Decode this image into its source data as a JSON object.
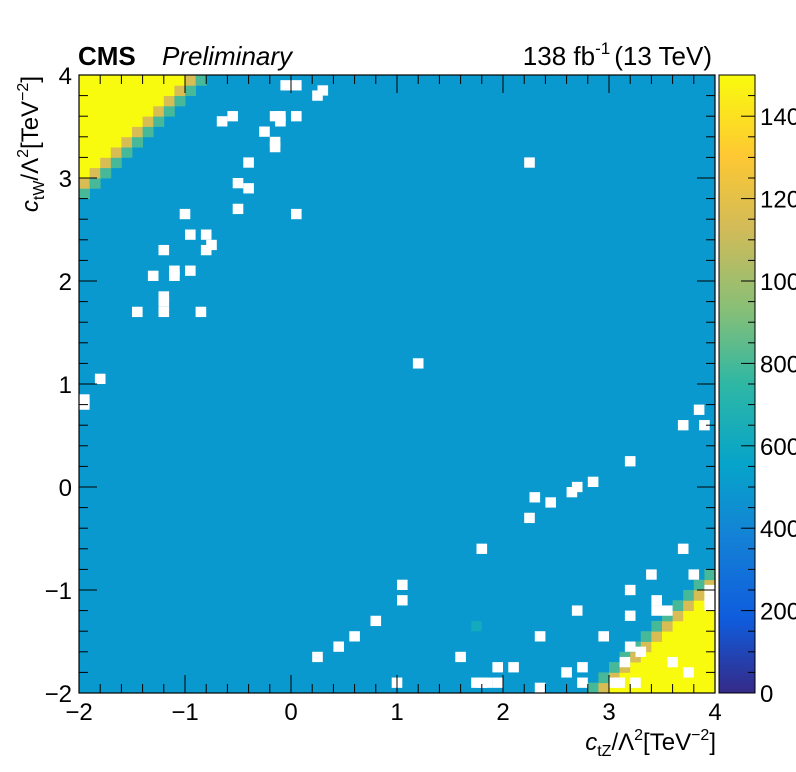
{
  "header": {
    "experiment": "CMS",
    "status": "Preliminary",
    "lumi_value": "138 fb",
    "lumi_exp": "-1",
    "energy": "(13 TeV)"
  },
  "chart_data": {
    "type": "heatmap",
    "xlabel": "c_tZ/Λ^2[TeV^-2]",
    "ylabel": "c_tW/Λ^2[TeV^-2]",
    "x_label_parts": {
      "var": "c",
      "sub": "tZ",
      "mid": "/Λ",
      "sup": "2",
      "unit": "[TeV",
      "unit_sup": "−2",
      "close": "]"
    },
    "y_label_parts": {
      "var": "c",
      "sub": "tW",
      "mid": "/Λ",
      "sup": "2",
      "unit": "[TeV",
      "unit_sup": "−2",
      "close": "]"
    },
    "xlim": [
      -2,
      4
    ],
    "ylim": [
      -2,
      4
    ],
    "x_ticks": [
      -2,
      -1,
      0,
      1,
      2,
      3,
      4
    ],
    "y_ticks": [
      -2,
      -1,
      0,
      1,
      2,
      3,
      4
    ],
    "x_tick_labels": [
      "−2",
      "−1",
      "0",
      "1",
      "2",
      "3",
      "4"
    ],
    "y_tick_labels": [
      "−2",
      "−1",
      "0",
      "1",
      "2",
      "3",
      "4"
    ],
    "z_range": [
      0,
      1500
    ],
    "z_ticks": [
      0,
      200,
      400,
      600,
      800,
      1000,
      1200,
      1400
    ],
    "z_tick_labels": [
      "0",
      "200",
      "400",
      "600",
      "800",
      "1000",
      "1200",
      "1400"
    ],
    "bins": 60,
    "background_value": 500,
    "saturated_value": 1500,
    "saturated_region_rule": "cells where |c_tZ - c_tW| greater than about 4.8 (top-left and bottom-right corners)",
    "green_cell": {
      "x": 1.75,
      "y": -1.35,
      "value": 620
    },
    "empty_cells": [
      [
        -0.05,
        3.9
      ],
      [
        0.05,
        3.9
      ],
      [
        0.25,
        3.8
      ],
      [
        0.3,
        3.85
      ],
      [
        -0.65,
        3.55
      ],
      [
        -0.55,
        3.6
      ],
      [
        -0.15,
        3.6
      ],
      [
        -0.1,
        3.55
      ],
      [
        -0.1,
        3.6
      ],
      [
        0.05,
        3.6
      ],
      [
        -0.15,
        3.35
      ],
      [
        -0.15,
        3.3
      ],
      [
        -0.25,
        3.45
      ],
      [
        -0.4,
        3.15
      ],
      [
        -0.5,
        2.95
      ],
      [
        -0.4,
        2.9
      ],
      [
        -0.5,
        2.7
      ],
      [
        0.05,
        2.65
      ],
      [
        2.25,
        3.15
      ],
      [
        -1.0,
        2.65
      ],
      [
        -0.95,
        2.45
      ],
      [
        -0.8,
        2.45
      ],
      [
        -0.75,
        2.35
      ],
      [
        -0.8,
        2.3
      ],
      [
        -1.2,
        2.3
      ],
      [
        -1.1,
        2.1
      ],
      [
        -1.1,
        2.05
      ],
      [
        -0.95,
        2.1
      ],
      [
        -1.3,
        2.05
      ],
      [
        -1.2,
        1.85
      ],
      [
        -1.2,
        1.8
      ],
      [
        -1.45,
        1.7
      ],
      [
        -1.2,
        1.7
      ],
      [
        -0.85,
        1.7
      ],
      [
        1.2,
        1.2
      ],
      [
        -1.8,
        1.05
      ],
      [
        -1.95,
        0.85
      ],
      [
        -1.95,
        0.8
      ],
      [
        3.85,
        0.75
      ],
      [
        3.7,
        0.6
      ],
      [
        3.9,
        0.6
      ],
      [
        3.2,
        0.25
      ],
      [
        2.85,
        0.05
      ],
      [
        2.7,
        0.0
      ],
      [
        2.65,
        -0.05
      ],
      [
        2.3,
        -0.1
      ],
      [
        2.45,
        -0.15
      ],
      [
        2.25,
        -0.3
      ],
      [
        1.8,
        -0.6
      ],
      [
        3.7,
        -0.6
      ],
      [
        3.4,
        -0.85
      ],
      [
        3.8,
        -0.85
      ],
      [
        1.05,
        -0.95
      ],
      [
        1.05,
        -1.1
      ],
      [
        3.95,
        -1.0
      ],
      [
        3.95,
        -1.1
      ],
      [
        3.2,
        -1.0
      ],
      [
        3.45,
        -1.1
      ],
      [
        3.45,
        -1.2
      ],
      [
        3.55,
        -1.2
      ],
      [
        3.95,
        -1.15
      ],
      [
        2.7,
        -1.2
      ],
      [
        3.2,
        -1.25
      ],
      [
        0.8,
        -1.3
      ],
      [
        0.6,
        -1.45
      ],
      [
        2.35,
        -1.45
      ],
      [
        2.95,
        -1.45
      ],
      [
        0.45,
        -1.55
      ],
      [
        3.2,
        -1.55
      ],
      [
        3.3,
        -1.6
      ],
      [
        0.25,
        -1.65
      ],
      [
        1.6,
        -1.65
      ],
      [
        3.15,
        -1.7
      ],
      [
        3.6,
        -1.7
      ],
      [
        2.1,
        -1.75
      ],
      [
        2.75,
        -1.75
      ],
      [
        1.95,
        -1.75
      ],
      [
        2.6,
        -1.8
      ],
      [
        3.75,
        -1.8
      ],
      [
        1.0,
        -1.9
      ],
      [
        1.75,
        -1.9
      ],
      [
        1.8,
        -1.9
      ],
      [
        1.95,
        -1.9
      ],
      [
        2.75,
        -1.9
      ],
      [
        3.05,
        -1.9
      ],
      [
        3.1,
        -1.9
      ],
      [
        3.25,
        -1.9
      ],
      [
        2.35,
        -1.95
      ],
      [
        1.85,
        -1.9
      ]
    ]
  }
}
